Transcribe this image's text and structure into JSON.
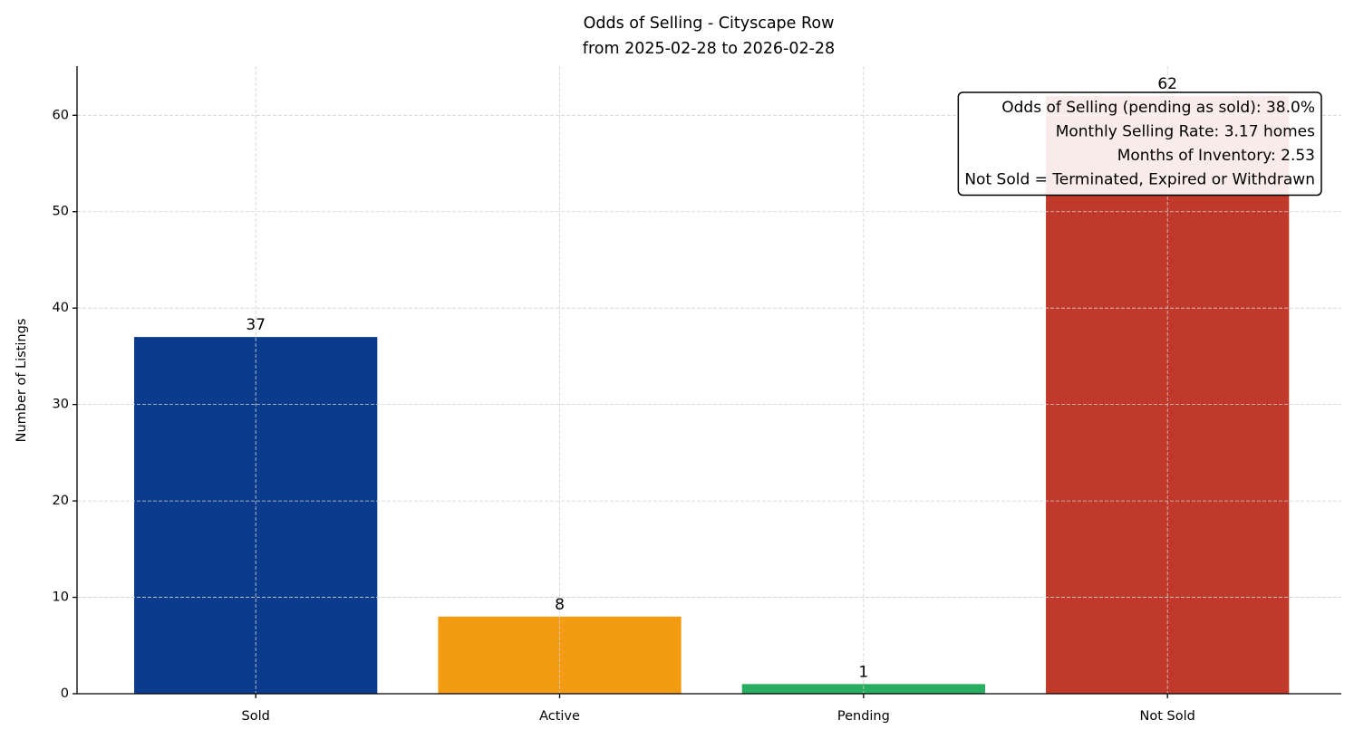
{
  "chart_data": {
    "type": "bar",
    "title": "Odds of Selling - Cityscape Row",
    "subtitle": "from 2025-02-28 to 2026-02-28",
    "y_label": "Number of Listings",
    "categories": [
      "Sold",
      "Active",
      "Pending",
      "Not Sold"
    ],
    "values": [
      37,
      8,
      1,
      62
    ],
    "colors": [
      "#0b3b8c",
      "#f39c12",
      "#27ae60",
      "#c0392b"
    ],
    "ylim": [
      0,
      65.1
    ],
    "yticks": [
      0,
      10,
      20,
      30,
      40,
      50,
      60
    ],
    "grid": true,
    "annotations": [
      "Odds of Selling (pending as sold): 38.0%",
      "Monthly Selling Rate: 3.17 homes",
      "Months of Inventory: 2.53",
      "Not Sold = Terminated, Expired or Withdrawn"
    ]
  }
}
